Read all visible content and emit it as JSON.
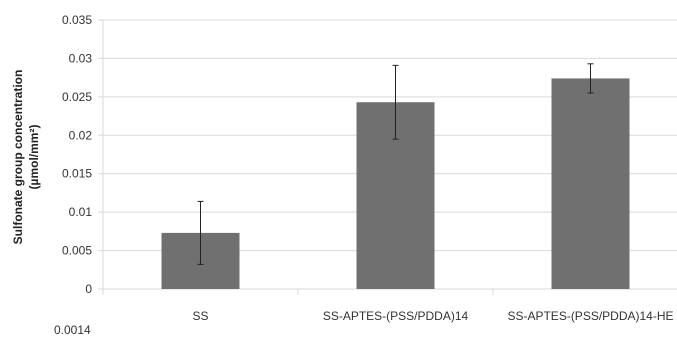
{
  "chart_data": {
    "type": "bar",
    "categories": [
      "SS",
      "SS-APTES-(PSS/PDDA)14",
      "SS-APTES-(PSS/PDDA)14-HE"
    ],
    "values": [
      0.0073,
      0.0243,
      0.0274
    ],
    "error": [
      0.0041,
      0.0048,
      0.0019
    ],
    "ylabel_line1": "Sulfonate group concentration",
    "ylabel_line2": "(µmol/mm²)",
    "ylim": [
      0,
      0.035
    ],
    "yticks": [
      0,
      0.005,
      0.01,
      0.015,
      0.02,
      0.025,
      0.03,
      0.035
    ],
    "ytick_labels": [
      "0",
      "0.005",
      "0.01",
      "0.015",
      "0.02",
      "0.025",
      "0.03",
      "0.035"
    ],
    "grid": true,
    "bar_color": "#707070",
    "grid_color": "#d9d9d9"
  },
  "next_chart_tick": "0.0014"
}
